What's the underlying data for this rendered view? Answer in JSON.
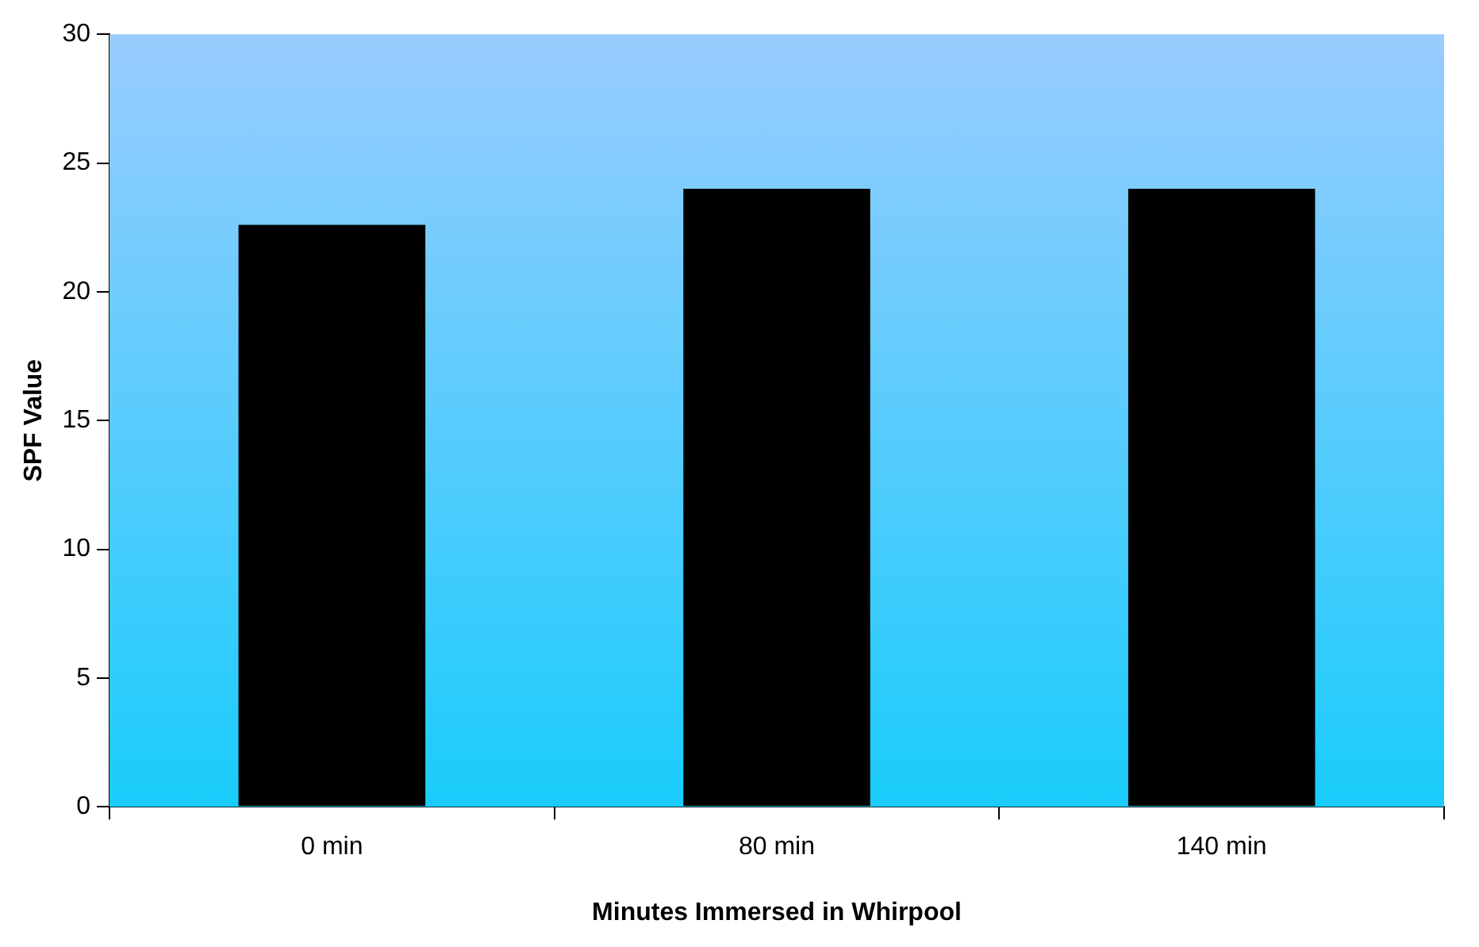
{
  "chart_data": {
    "type": "bar",
    "xlabel": "Minutes Immersed in Whirpool",
    "ylabel": "SPF Value",
    "categories": [
      "0 min",
      "80 min",
      "140 min"
    ],
    "values": [
      22.6,
      24,
      24
    ],
    "color": "#000000",
    "ylim": [
      0,
      30
    ],
    "yticks": [
      0,
      5,
      10,
      15,
      20,
      25,
      30
    ],
    "grid": false,
    "legend": false
  }
}
